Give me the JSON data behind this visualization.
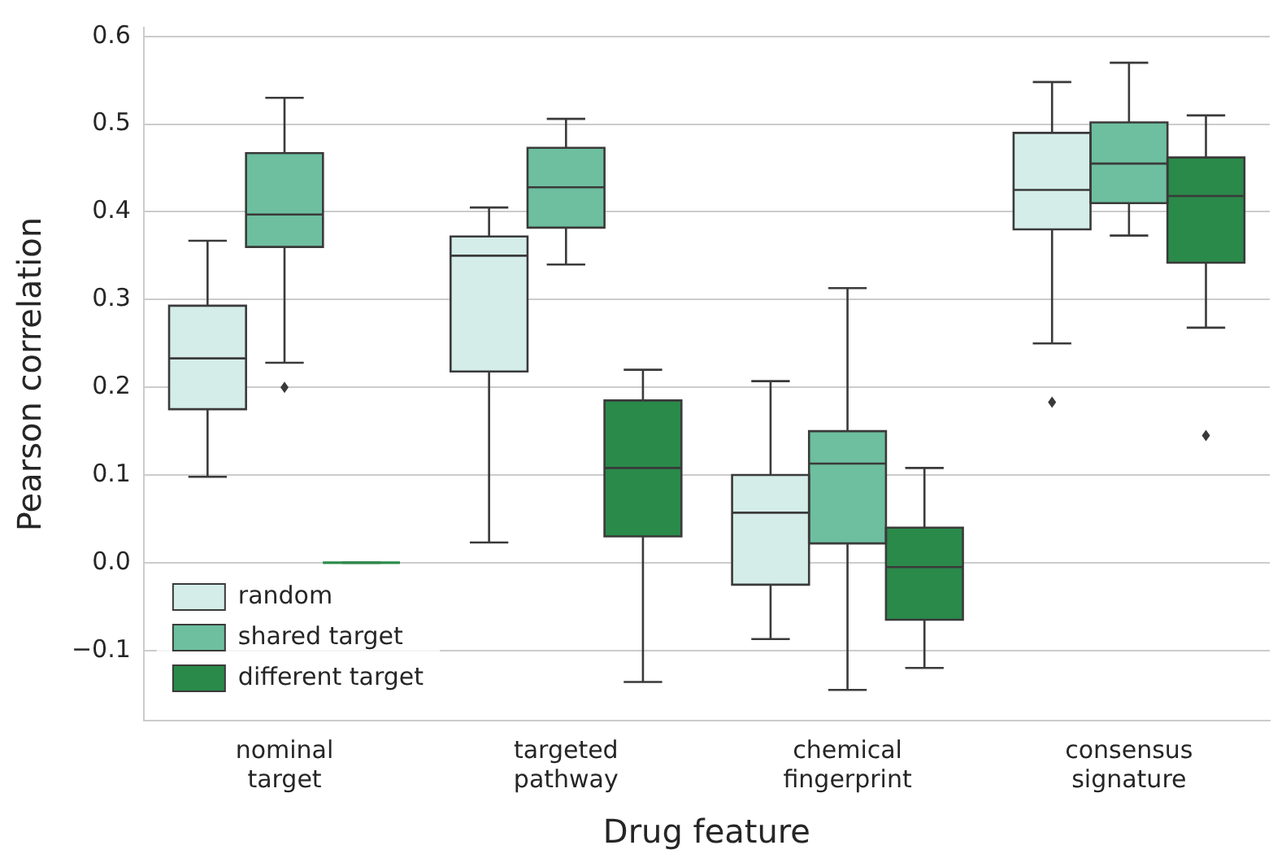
{
  "chart_data": {
    "type": "box",
    "xlabel": "Drug feature",
    "ylabel": "Pearson correlation",
    "categories": [
      "nominal target",
      "targeted pathway",
      "chemical fingerprint",
      "consensus signature"
    ],
    "ylim": [
      -0.18,
      0.61
    ],
    "yticks": [
      {
        "value": -0.1,
        "label": "−0.1"
      },
      {
        "value": 0,
        "label": "0.0"
      },
      {
        "value": 0.1,
        "label": "0.1"
      },
      {
        "value": 0.2,
        "label": "0.2"
      },
      {
        "value": 0.3,
        "label": "0.3"
      },
      {
        "value": 0.4,
        "label": "0.4"
      },
      {
        "value": 0.5,
        "label": "0.5"
      },
      {
        "value": 0.6,
        "label": "0.6"
      }
    ],
    "grid": "y",
    "legend": "bottom left",
    "series": [
      {
        "name": "random",
        "color": "#d4ede8",
        "boxes": [
          {
            "low": 0.098,
            "q1": 0.175,
            "median": 0.233,
            "q3": 0.293,
            "high": 0.367
          },
          {
            "low": 0.023,
            "q1": 0.218,
            "median": 0.35,
            "q3": 0.372,
            "high": 0.405
          },
          {
            "low": -0.087,
            "q1": -0.025,
            "median": 0.057,
            "q3": 0.1,
            "high": 0.207
          },
          {
            "low": 0.25,
            "q1": 0.38,
            "median": 0.425,
            "q3": 0.49,
            "high": 0.548,
            "outliers": [
              0.183
            ]
          }
        ]
      },
      {
        "name": "shared target",
        "color": "#6dbf9f",
        "boxes": [
          {
            "low": 0.228,
            "q1": 0.36,
            "median": 0.397,
            "q3": 0.467,
            "high": 0.53,
            "outliers": [
              0.2
            ]
          },
          {
            "low": 0.34,
            "q1": 0.382,
            "median": 0.428,
            "q3": 0.473,
            "high": 0.506
          },
          {
            "low": -0.145,
            "q1": 0.022,
            "median": 0.113,
            "q3": 0.15,
            "high": 0.313
          },
          {
            "low": 0.373,
            "q1": 0.41,
            "median": 0.455,
            "q3": 0.502,
            "high": 0.57
          }
        ]
      },
      {
        "name": "different target",
        "color": "#2a8a4a",
        "boxes": [
          {
            "low": 0,
            "q1": 0,
            "median": 0,
            "q3": 0,
            "high": 0
          },
          {
            "low": -0.136,
            "q1": 0.03,
            "median": 0.108,
            "q3": 0.185,
            "high": 0.22
          },
          {
            "low": -0.12,
            "q1": -0.065,
            "median": -0.005,
            "q3": 0.04,
            "high": 0.108
          },
          {
            "low": 0.268,
            "q1": 0.342,
            "median": 0.418,
            "q3": 0.462,
            "high": 0.51,
            "outliers": [
              0.145
            ]
          }
        ]
      }
    ]
  }
}
